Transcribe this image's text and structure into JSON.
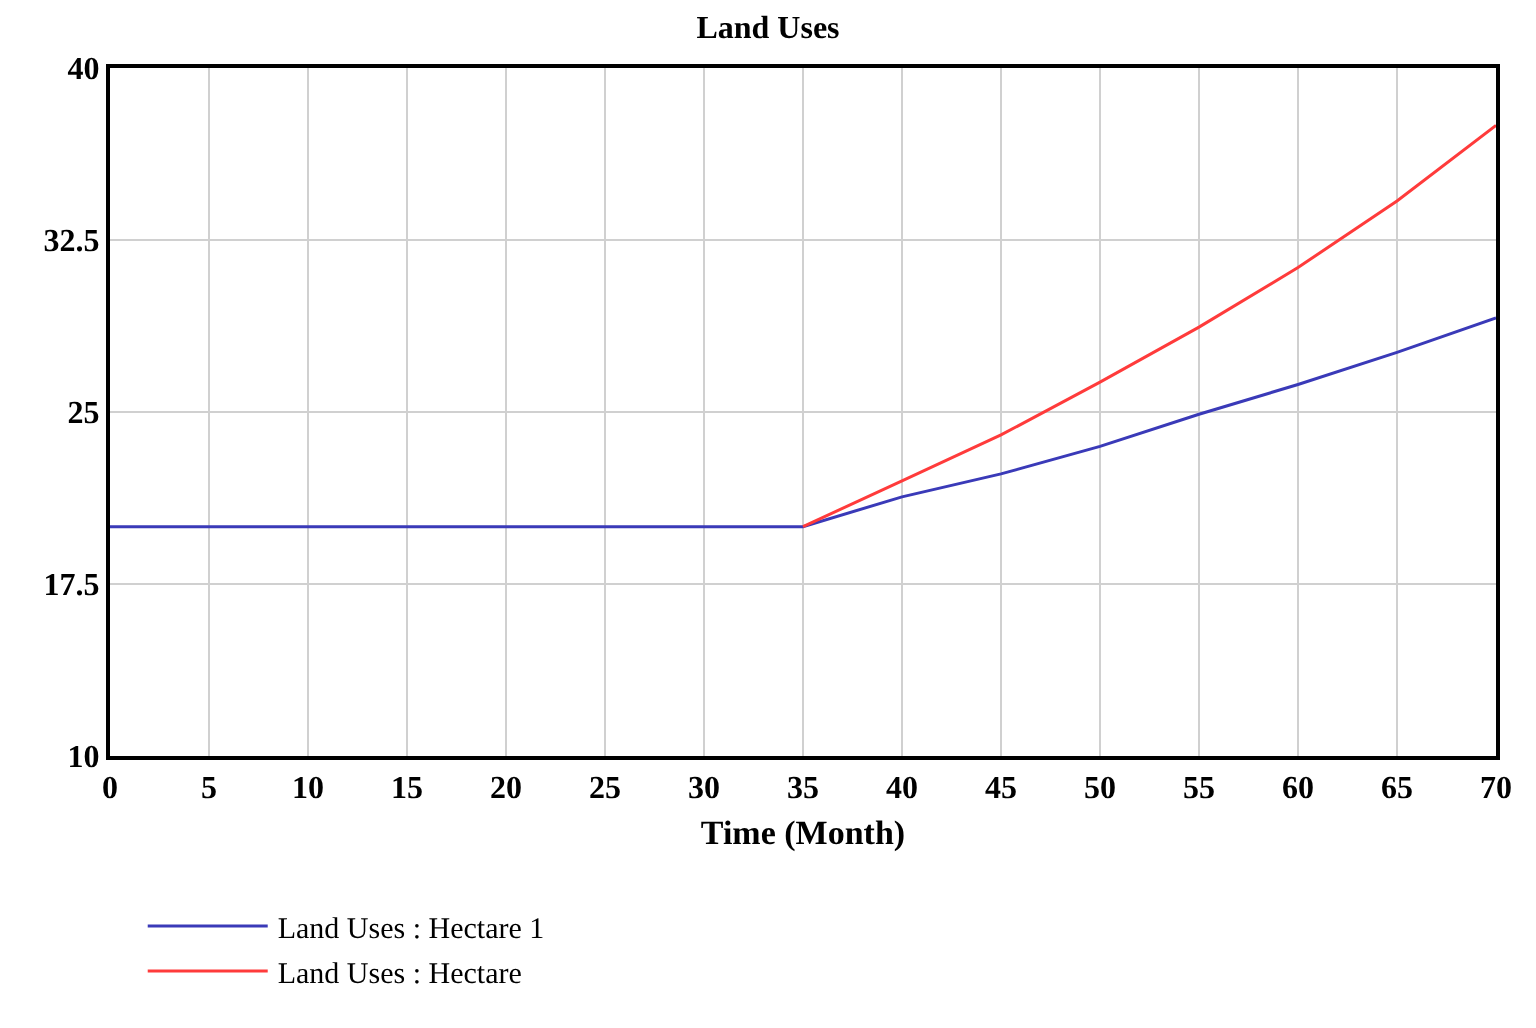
{
  "chart_data": {
    "type": "line",
    "title": "Land Uses",
    "xlabel": "Time (Month)",
    "x": [
      0,
      5,
      10,
      15,
      20,
      25,
      30,
      35,
      40,
      45,
      50,
      55,
      60,
      65,
      70
    ],
    "series": [
      {
        "name": "Land Uses : Hectare 1",
        "color": "#3a3ab8",
        "values": [
          20,
          20,
          20,
          20,
          20,
          20,
          20,
          20,
          21.3,
          22.3,
          23.5,
          24.9,
          26.2,
          27.6,
          29.1
        ]
      },
      {
        "name": "Land Uses : Hectare",
        "color": "#ff3b3b",
        "values": [
          null,
          null,
          null,
          null,
          null,
          null,
          null,
          20,
          22.0,
          24.0,
          26.3,
          28.7,
          31.3,
          34.2,
          37.5
        ]
      }
    ],
    "xlim": [
      0,
      70
    ],
    "xticks": [
      0,
      5,
      10,
      15,
      20,
      25,
      30,
      35,
      40,
      45,
      50,
      55,
      60,
      65,
      70
    ],
    "ylim": [
      10,
      40
    ],
    "yticks": [
      10,
      17.5,
      25,
      32.5,
      40
    ],
    "grid": true,
    "legend": "bottom",
    "marker": "none",
    "line_style": "solid"
  }
}
